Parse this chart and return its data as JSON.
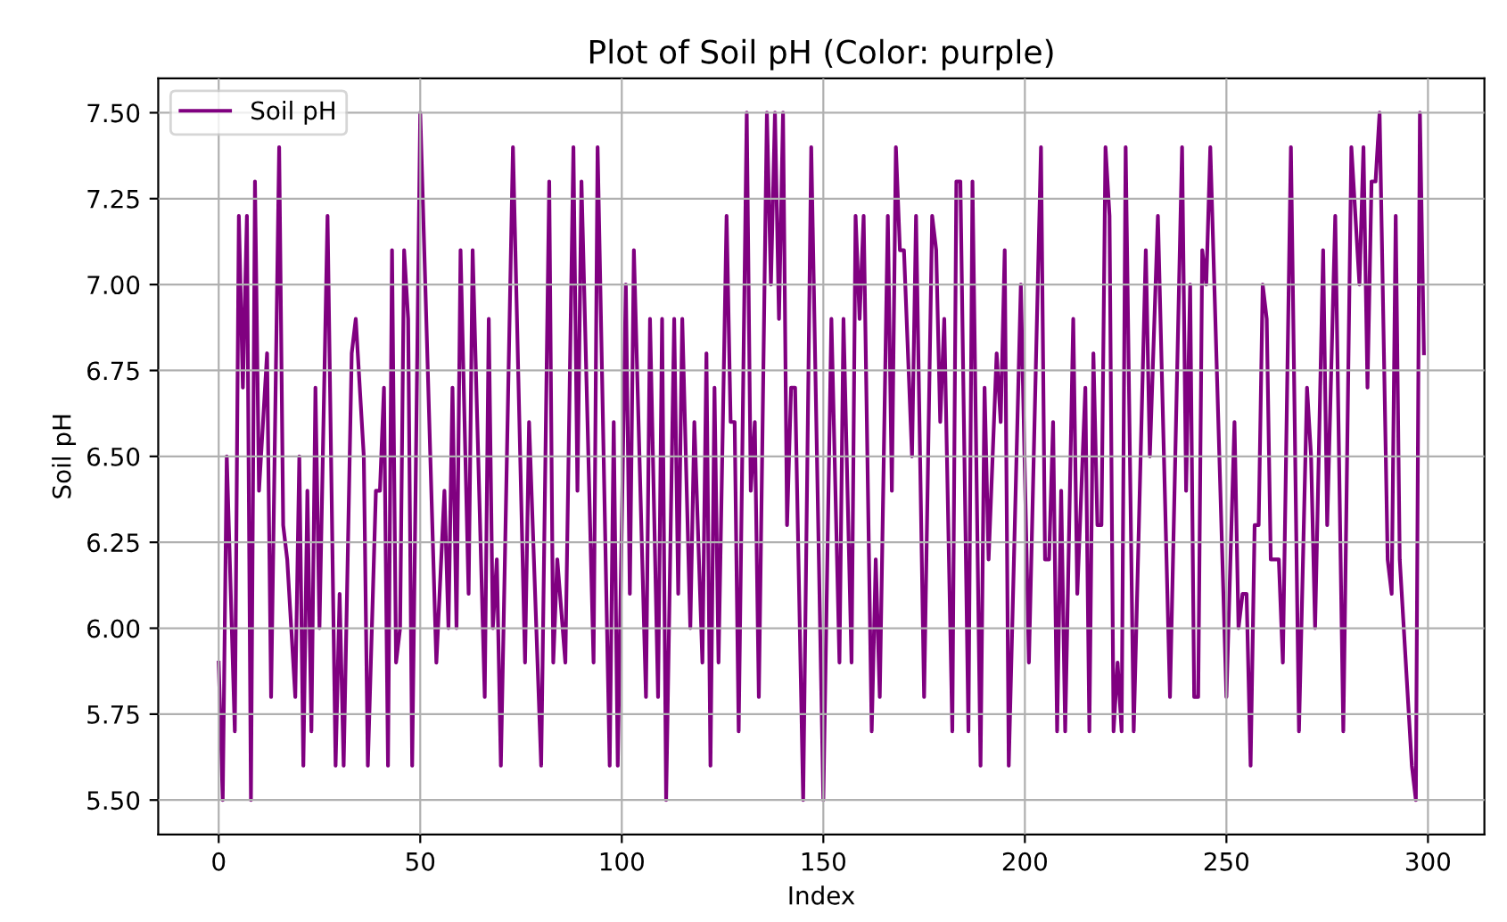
{
  "chart_data": {
    "type": "line",
    "title": "Plot of Soil pH (Color: purple)",
    "xlabel": "Index",
    "ylabel": "Soil pH",
    "series": [
      {
        "name": "Soil pH",
        "color": "#800080",
        "x": [
          0,
          1,
          2,
          4,
          5,
          6,
          7,
          8,
          9,
          10,
          12,
          13,
          15,
          16,
          17,
          19,
          20,
          21,
          22,
          23,
          24,
          25,
          27,
          29,
          30,
          31,
          33,
          34,
          36,
          37,
          39,
          40,
          41,
          42,
          43,
          44,
          45,
          46,
          47,
          48,
          50,
          54,
          56,
          57,
          58,
          59,
          60,
          62,
          63,
          66,
          67,
          68,
          69,
          70,
          73,
          76,
          77,
          80,
          82,
          83,
          84,
          86,
          88,
          89,
          90,
          93,
          94,
          97,
          98,
          99,
          101,
          102,
          103,
          106,
          107,
          109,
          110,
          111,
          113,
          114,
          115,
          117,
          118,
          120,
          121,
          122,
          123,
          124,
          126,
          127,
          128,
          129,
          131,
          132,
          133,
          134,
          136,
          137,
          138,
          139,
          140,
          141,
          142,
          143,
          145,
          147,
          150,
          152,
          154,
          155,
          157,
          158,
          159,
          160,
          162,
          163,
          164,
          166,
          167,
          168,
          169,
          170,
          172,
          173,
          175,
          177,
          178,
          179,
          180,
          182,
          183,
          184,
          186,
          187,
          189,
          190,
          191,
          193,
          194,
          195,
          196,
          199,
          201,
          204,
          205,
          206,
          207,
          208,
          209,
          210,
          212,
          213,
          215,
          216,
          217,
          218,
          219,
          220,
          221,
          222,
          223,
          224,
          225,
          227,
          230,
          231,
          233,
          236,
          239,
          240,
          241,
          242,
          243,
          244,
          245,
          246,
          250,
          252,
          253,
          254,
          255,
          256,
          257,
          258,
          259,
          260,
          261,
          263,
          264,
          266,
          268,
          270,
          271,
          272,
          274,
          275,
          277,
          279,
          281,
          283,
          284,
          285,
          286,
          287,
          288,
          290,
          291,
          292,
          293,
          296,
          297,
          298,
          299
        ],
        "values": [
          5.9,
          5.5,
          6.5,
          5.7,
          7.2,
          6.7,
          7.2,
          5.5,
          7.3,
          6.4,
          6.8,
          5.8,
          7.4,
          6.3,
          6.2,
          5.8,
          6.5,
          5.6,
          6.4,
          5.7,
          6.7,
          6.0,
          7.2,
          5.6,
          6.1,
          5.6,
          6.8,
          6.9,
          6.5,
          5.6,
          6.4,
          6.4,
          6.7,
          5.6,
          7.1,
          5.9,
          6.0,
          7.1,
          6.9,
          5.6,
          7.5,
          5.9,
          6.4,
          6.0,
          6.7,
          6.0,
          7.1,
          6.1,
          7.1,
          5.8,
          6.9,
          6.0,
          6.2,
          5.6,
          7.4,
          5.9,
          6.6,
          5.6,
          7.3,
          5.9,
          6.2,
          5.9,
          7.4,
          6.4,
          7.3,
          5.9,
          7.4,
          5.6,
          6.6,
          5.6,
          7.0,
          6.1,
          7.1,
          5.8,
          6.9,
          5.8,
          6.9,
          5.5,
          6.9,
          6.1,
          6.9,
          6.0,
          6.6,
          5.9,
          6.8,
          5.6,
          6.7,
          5.9,
          7.2,
          6.6,
          6.6,
          5.7,
          7.5,
          6.4,
          6.6,
          5.8,
          7.5,
          7.0,
          7.5,
          6.9,
          7.5,
          6.3,
          6.7,
          6.7,
          5.5,
          7.4,
          5.5,
          6.9,
          5.9,
          6.9,
          5.9,
          7.2,
          6.9,
          7.2,
          5.7,
          6.2,
          5.8,
          7.2,
          6.4,
          7.4,
          7.1,
          7.1,
          6.5,
          7.2,
          5.8,
          7.2,
          7.1,
          6.6,
          6.9,
          5.7,
          7.3,
          7.3,
          5.7,
          7.3,
          5.6,
          6.7,
          6.2,
          6.8,
          6.6,
          7.1,
          5.6,
          7.0,
          5.9,
          7.4,
          6.2,
          6.2,
          6.6,
          5.7,
          6.4,
          5.7,
          6.9,
          6.1,
          6.7,
          5.7,
          6.8,
          6.3,
          6.3,
          7.4,
          7.2,
          5.7,
          5.9,
          5.7,
          7.4,
          5.7,
          7.1,
          6.5,
          7.2,
          5.8,
          7.4,
          6.4,
          7.0,
          5.8,
          5.8,
          7.1,
          7.0,
          7.4,
          5.8,
          6.6,
          6.0,
          6.1,
          6.1,
          5.6,
          6.3,
          6.3,
          7.0,
          6.9,
          6.2,
          6.2,
          5.9,
          7.4,
          5.7,
          6.7,
          6.5,
          6.0,
          7.1,
          6.3,
          7.2,
          5.7,
          7.4,
          7.0,
          7.4,
          6.7,
          7.3,
          7.3,
          7.5,
          6.2,
          6.1,
          7.2,
          6.2,
          5.6,
          5.5,
          7.5,
          6.8
        ]
      }
    ],
    "xlim": [
      -15,
      314
    ],
    "ylim": [
      5.4,
      7.6
    ],
    "xticks": [
      0,
      50,
      100,
      150,
      200,
      250,
      300
    ],
    "yticks": [
      {
        "value": 5.5,
        "label": "5.50"
      },
      5.75,
      {
        "value": 6.0,
        "label": "6.00"
      },
      6.25,
      {
        "value": 6.5,
        "label": "6.50"
      },
      6.75,
      {
        "value": 7.0,
        "label": "7.00"
      },
      7.25,
      {
        "value": 7.5,
        "label": "7.50"
      }
    ],
    "grid": true,
    "legend": "top left"
  }
}
